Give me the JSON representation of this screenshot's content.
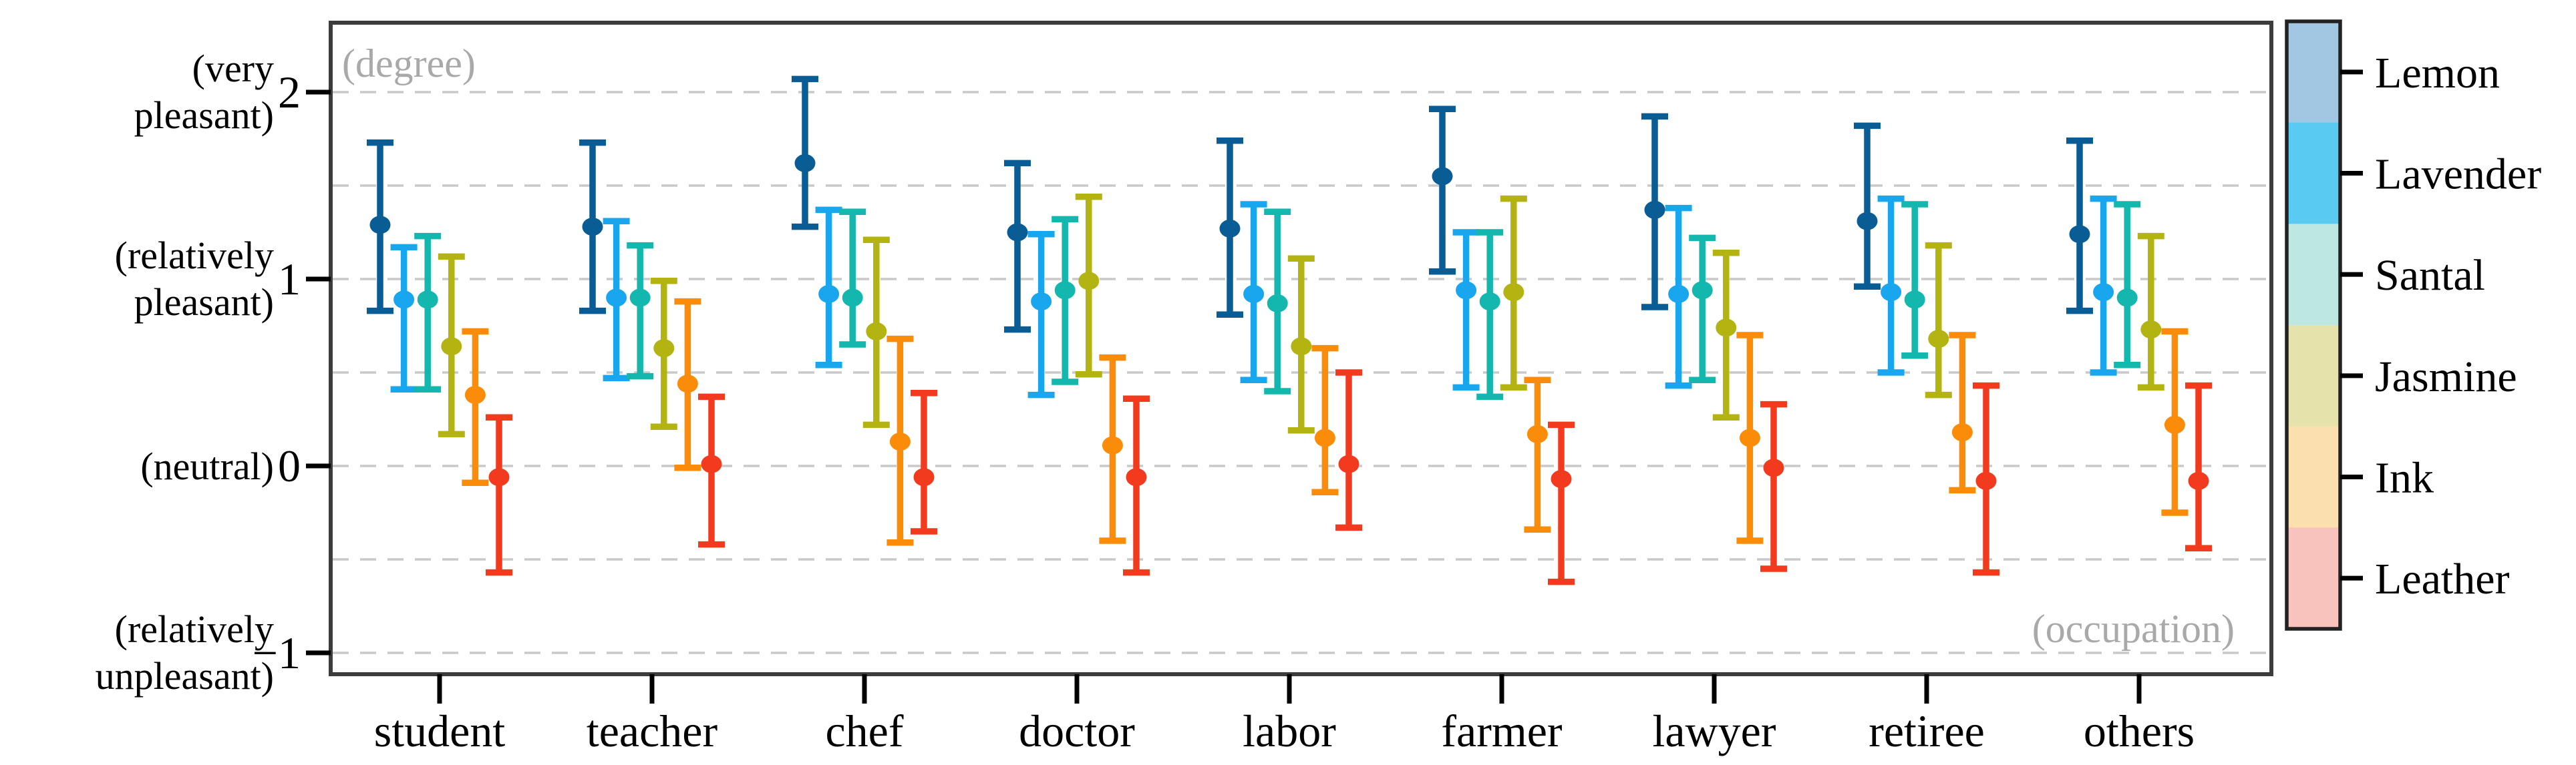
{
  "figure": {
    "inner_axis_label_top_left": "(degree)",
    "inner_axis_label_bottom_right": "(occupation)",
    "annotation_color": "#a9a9a9",
    "frame_color": "#3c3c3c",
    "gridline_color": "#c9c9c9",
    "background": "#ffffff"
  },
  "y_axis": {
    "tick_labels": [
      {
        "value": 2,
        "label": "2"
      },
      {
        "value": 1,
        "label": "1"
      },
      {
        "value": 0,
        "label": "0"
      },
      {
        "value": -1,
        "label": "−1"
      }
    ],
    "side_labels": [
      {
        "value": 2,
        "lines": [
          "(very",
          "pleasant)"
        ]
      },
      {
        "value": 1,
        "lines": [
          "(relatively",
          "pleasant)"
        ]
      },
      {
        "value": 0,
        "lines": [
          "(neutral)"
        ]
      },
      {
        "value": -1,
        "lines": [
          "(relatively",
          "unpleasant)"
        ]
      }
    ],
    "gridline_values": [
      2,
      1.5,
      1,
      0.5,
      0,
      -0.5,
      -1
    ]
  },
  "legend": {
    "entries": [
      {
        "label": "Lemon",
        "swatch_color": "#a2c7e3"
      },
      {
        "label": "Lavender",
        "swatch_color": "#59cbf2"
      },
      {
        "label": "Santal",
        "swatch_color": "#bce8e1"
      },
      {
        "label": "Jasmine",
        "swatch_color": "#e6e2ab"
      },
      {
        "label": "Ink",
        "swatch_color": "#fcdfae"
      },
      {
        "label": "Leather",
        "swatch_color": "#f8c3bd"
      }
    ]
  },
  "chart_data": {
    "type": "scatter",
    "subtype": "dot-with-error-bars",
    "title": "",
    "xlabel": "(occupation)",
    "ylabel": "(degree)",
    "grid": "dashed-horizontal",
    "legend_position": "right-colorbar",
    "ylim": [
      -1.11,
      2.37
    ],
    "categories": [
      "student",
      "teacher",
      "chef",
      "doctor",
      "labor",
      "farmer",
      "lawyer",
      "retiree",
      "others"
    ],
    "series": [
      {
        "name": "Lemon",
        "color": "#0a5c95",
        "means": [
          1.29,
          1.28,
          1.62,
          1.25,
          1.27,
          1.55,
          1.37,
          1.31,
          1.24
        ],
        "lo": [
          0.83,
          0.83,
          1.28,
          0.73,
          0.81,
          1.04,
          0.85,
          0.96,
          0.83
        ],
        "hi": [
          1.73,
          1.73,
          2.07,
          1.62,
          1.74,
          1.91,
          1.87,
          1.82,
          1.74
        ]
      },
      {
        "name": "Lavender",
        "color": "#18a6ee",
        "means": [
          0.89,
          0.9,
          0.92,
          0.88,
          0.92,
          0.94,
          0.92,
          0.93,
          0.93
        ],
        "lo": [
          0.41,
          0.47,
          0.54,
          0.38,
          0.46,
          0.42,
          0.43,
          0.5,
          0.5
        ],
        "hi": [
          1.17,
          1.31,
          1.37,
          1.24,
          1.4,
          1.25,
          1.38,
          1.43,
          1.43
        ]
      },
      {
        "name": "Santal",
        "color": "#13b7ae",
        "means": [
          0.89,
          0.9,
          0.9,
          0.94,
          0.87,
          0.88,
          0.94,
          0.89,
          0.9
        ],
        "lo": [
          0.41,
          0.48,
          0.65,
          0.45,
          0.4,
          0.37,
          0.46,
          0.59,
          0.54
        ],
        "hi": [
          1.23,
          1.18,
          1.36,
          1.32,
          1.36,
          1.25,
          1.22,
          1.4,
          1.4
        ]
      },
      {
        "name": "Jasmine",
        "color": "#b3b312",
        "means": [
          0.64,
          0.63,
          0.72,
          0.99,
          0.64,
          0.93,
          0.74,
          0.68,
          0.73
        ],
        "lo": [
          0.17,
          0.21,
          0.22,
          0.49,
          0.19,
          0.42,
          0.26,
          0.38,
          0.42
        ],
        "hi": [
          1.12,
          0.99,
          1.21,
          1.44,
          1.11,
          1.43,
          1.14,
          1.18,
          1.23
        ]
      },
      {
        "name": "Ink",
        "color": "#fb8c09",
        "means": [
          0.38,
          0.44,
          0.13,
          0.11,
          0.15,
          0.17,
          0.15,
          0.18,
          0.22
        ],
        "lo": [
          -0.09,
          -0.01,
          -0.41,
          -0.4,
          -0.14,
          -0.34,
          -0.4,
          -0.13,
          -0.25
        ],
        "hi": [
          0.72,
          0.88,
          0.68,
          0.58,
          0.63,
          0.46,
          0.7,
          0.7,
          0.72
        ]
      },
      {
        "name": "Leather",
        "color": "#f23a1f",
        "means": [
          -0.06,
          0.01,
          -0.06,
          -0.06,
          0.01,
          -0.07,
          -0.01,
          -0.08,
          -0.08
        ],
        "lo": [
          -0.57,
          -0.42,
          -0.35,
          -0.57,
          -0.33,
          -0.62,
          -0.55,
          -0.57,
          -0.44
        ],
        "hi": [
          0.26,
          0.37,
          0.39,
          0.36,
          0.5,
          0.22,
          0.33,
          0.43,
          0.43
        ]
      }
    ]
  }
}
